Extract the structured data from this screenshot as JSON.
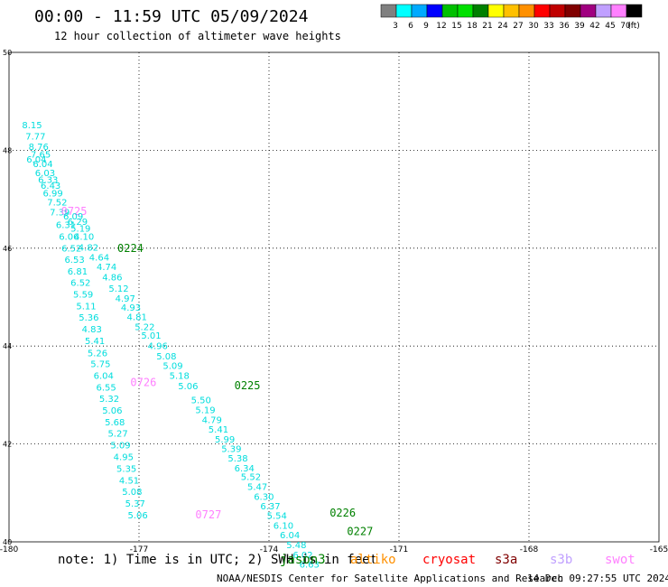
{
  "header": {
    "title": "00:00 - 11:59 UTC 05/09/2024",
    "subtitle": "12 hour collection of altimeter wave heights"
  },
  "colorbar": {
    "labels": [
      "3",
      "6",
      "9",
      "12",
      "15",
      "18",
      "21",
      "24",
      "27",
      "30",
      "33",
      "36",
      "39",
      "42",
      "45",
      "70",
      "(ft)"
    ],
    "colors": [
      "#808080",
      "#00ffff",
      "#00aaff",
      "#0000ff",
      "#00c000",
      "#00e000",
      "#008000",
      "#ffff00",
      "#ffc000",
      "#ff9000",
      "#ff0000",
      "#c00000",
      "#800000",
      "#a00080",
      "#c0a0ff",
      "#ff80ff",
      "#000000"
    ]
  },
  "footer": {
    "note": "note: 1) Time is in UTC; 2) SWH is in feet",
    "credit": "NOAA/NESDIS Center for Satellite Applications and Research",
    "timestamp": "14 Dec 09:27:55 UTC 2024",
    "missions": [
      {
        "name": "jason3",
        "color": "#008000"
      },
      {
        "name": "altiko",
        "color": "#ff9000"
      },
      {
        "name": "cryosat",
        "color": "#ff0000"
      },
      {
        "name": "s3a",
        "color": "#800000"
      },
      {
        "name": "s3b",
        "color": "#c0a0ff"
      },
      {
        "name": "swot",
        "color": "#ff80ff"
      }
    ]
  },
  "chart_data": {
    "type": "scatter",
    "title": "00:00 - 11:59 UTC 05/09/2024",
    "xlabel": "",
    "ylabel": "",
    "xlim": [
      -180,
      -165
    ],
    "ylim": [
      40,
      50
    ],
    "x_ticks": [
      "-180",
      "-177",
      "-174",
      "-171",
      "-168",
      "-165"
    ],
    "y_ticks": [
      "50",
      "48",
      "46",
      "44",
      "42",
      "40"
    ],
    "grid": true,
    "units": "ft",
    "value_color": "#00dddd",
    "series": [
      {
        "name": "swot",
        "color": "#ff80ff",
        "points": [
          {
            "lon": -179.7,
            "lat": 48.45,
            "v": "8.15"
          },
          {
            "lon": -179.62,
            "lat": 48.22,
            "v": "7.77"
          },
          {
            "lon": -179.55,
            "lat": 48.01,
            "v": "8.76"
          },
          {
            "lon": -179.5,
            "lat": 47.85,
            "v": "7.65"
          },
          {
            "lon": -179.6,
            "lat": 47.75,
            "v": "6.04"
          },
          {
            "lon": -179.45,
            "lat": 47.66,
            "v": "6.04"
          },
          {
            "lon": -179.4,
            "lat": 47.47,
            "v": "6.03"
          },
          {
            "lon": -179.33,
            "lat": 47.33,
            "v": "6.33"
          },
          {
            "lon": -179.27,
            "lat": 47.21,
            "v": "6.43"
          },
          {
            "lon": -179.22,
            "lat": 47.06,
            "v": "6.99"
          },
          {
            "lon": -179.12,
            "lat": 46.87,
            "v": "7.52"
          },
          {
            "lon": -179.06,
            "lat": 46.67,
            "v": "7.39"
          },
          {
            "lon": -178.92,
            "lat": 46.41,
            "v": "6.31"
          },
          {
            "lon": -178.85,
            "lat": 46.17,
            "v": "6.06"
          },
          {
            "lon": -178.79,
            "lat": 45.93,
            "v": "6.52"
          },
          {
            "lon": -178.72,
            "lat": 45.7,
            "v": "6.53"
          },
          {
            "lon": -178.65,
            "lat": 45.46,
            "v": "6.81"
          },
          {
            "lon": -178.58,
            "lat": 45.23,
            "v": "6.52"
          },
          {
            "lon": -178.52,
            "lat": 44.99,
            "v": "5.59"
          },
          {
            "lon": -178.45,
            "lat": 44.75,
            "v": "5.11"
          },
          {
            "lon": -178.39,
            "lat": 44.52,
            "v": "5.36"
          },
          {
            "lon": -178.32,
            "lat": 44.28,
            "v": "4.83"
          },
          {
            "lon": -178.25,
            "lat": 44.04,
            "v": "5.41"
          },
          {
            "lon": -178.19,
            "lat": 43.79,
            "v": "5.26"
          },
          {
            "lon": -178.12,
            "lat": 43.57,
            "v": "5.75"
          },
          {
            "lon": -178.05,
            "lat": 43.33,
            "v": "6.04"
          },
          {
            "lon": -177.99,
            "lat": 43.09,
            "v": "6.55"
          },
          {
            "lon": -177.92,
            "lat": 42.86,
            "v": "5.32"
          },
          {
            "lon": -177.85,
            "lat": 42.62,
            "v": "5.06"
          },
          {
            "lon": -177.79,
            "lat": 42.38,
            "v": "5.68"
          },
          {
            "lon": -177.72,
            "lat": 42.15,
            "v": "5.27"
          },
          {
            "lon": -177.66,
            "lat": 41.91,
            "v": "5.09"
          },
          {
            "lon": -177.59,
            "lat": 41.67,
            "v": "4.95"
          },
          {
            "lon": -177.52,
            "lat": 41.43,
            "v": "5.35"
          },
          {
            "lon": -177.46,
            "lat": 41.19,
            "v": "4.51"
          },
          {
            "lon": -177.39,
            "lat": 40.96,
            "v": "5.08"
          },
          {
            "lon": -177.32,
            "lat": 40.72,
            "v": "5.37"
          },
          {
            "lon": -177.26,
            "lat": 40.48,
            "v": "5.06"
          }
        ],
        "time_labels": [
          {
            "lon": -178.8,
            "lat": 46.68,
            "label": "0725"
          },
          {
            "lon": -177.2,
            "lat": 43.18,
            "label": "0726"
          },
          {
            "lon": -175.7,
            "lat": 40.48,
            "label": "0727"
          }
        ]
      },
      {
        "name": "jason3",
        "color": "#008000",
        "points": [
          {
            "lon": -178.75,
            "lat": 46.59,
            "v": "6.09"
          },
          {
            "lon": -178.65,
            "lat": 46.48,
            "v": "6.29"
          },
          {
            "lon": -178.58,
            "lat": 46.34,
            "v": "5.19"
          },
          {
            "lon": -178.5,
            "lat": 46.17,
            "v": "4.10"
          },
          {
            "lon": -178.4,
            "lat": 45.95,
            "v": "4.82"
          },
          {
            "lon": -178.15,
            "lat": 45.75,
            "v": "4.64"
          },
          {
            "lon": -177.98,
            "lat": 45.55,
            "v": "4.74"
          },
          {
            "lon": -177.85,
            "lat": 45.34,
            "v": "4.86"
          },
          {
            "lon": -177.7,
            "lat": 45.11,
            "v": "5.12"
          },
          {
            "lon": -177.55,
            "lat": 44.91,
            "v": "4.97"
          },
          {
            "lon": -177.42,
            "lat": 44.72,
            "v": "4.93"
          },
          {
            "lon": -177.28,
            "lat": 44.53,
            "v": "4.81"
          },
          {
            "lon": -177.1,
            "lat": 44.33,
            "v": "5.22"
          },
          {
            "lon": -176.95,
            "lat": 44.15,
            "v": "5.01"
          },
          {
            "lon": -176.8,
            "lat": 43.94,
            "v": "4.96"
          },
          {
            "lon": -176.6,
            "lat": 43.73,
            "v": "5.08"
          },
          {
            "lon": -176.45,
            "lat": 43.53,
            "v": "5.09"
          },
          {
            "lon": -176.3,
            "lat": 43.33,
            "v": "5.18"
          },
          {
            "lon": -176.1,
            "lat": 43.12,
            "v": "5.06"
          },
          {
            "lon": -175.8,
            "lat": 42.83,
            "v": "5.50"
          },
          {
            "lon": -175.7,
            "lat": 42.63,
            "v": "5.19"
          },
          {
            "lon": -175.55,
            "lat": 42.43,
            "v": "4.79"
          },
          {
            "lon": -175.4,
            "lat": 42.23,
            "v": "5.41"
          },
          {
            "lon": -175.25,
            "lat": 42.03,
            "v": "5.99"
          },
          {
            "lon": -175.1,
            "lat": 41.84,
            "v": "5.39"
          },
          {
            "lon": -174.95,
            "lat": 41.64,
            "v": "5.38"
          },
          {
            "lon": -174.8,
            "lat": 41.44,
            "v": "6.34"
          },
          {
            "lon": -174.65,
            "lat": 41.26,
            "v": "5.52"
          },
          {
            "lon": -174.5,
            "lat": 41.06,
            "v": "5.47"
          },
          {
            "lon": -174.35,
            "lat": 40.86,
            "v": "6.30"
          },
          {
            "lon": -174.2,
            "lat": 40.66,
            "v": "6.37"
          },
          {
            "lon": -174.05,
            "lat": 40.47,
            "v": "5.54"
          },
          {
            "lon": -173.9,
            "lat": 40.27,
            "v": "6.10"
          },
          {
            "lon": -173.75,
            "lat": 40.07,
            "v": "6.04"
          },
          {
            "lon": -173.6,
            "lat": 39.87,
            "v": "5.48"
          },
          {
            "lon": -173.45,
            "lat": 39.67,
            "v": "6.02"
          },
          {
            "lon": -173.3,
            "lat": 39.47,
            "v": "6.63"
          }
        ],
        "time_labels": [
          {
            "lon": -177.5,
            "lat": 45.92,
            "label": "0224"
          },
          {
            "lon": -174.8,
            "lat": 43.12,
            "label": "0225"
          },
          {
            "lon": -172.6,
            "lat": 40.52,
            "label": "0226"
          },
          {
            "lon": -172.2,
            "lat": 40.14,
            "label": "0227"
          }
        ]
      }
    ]
  }
}
